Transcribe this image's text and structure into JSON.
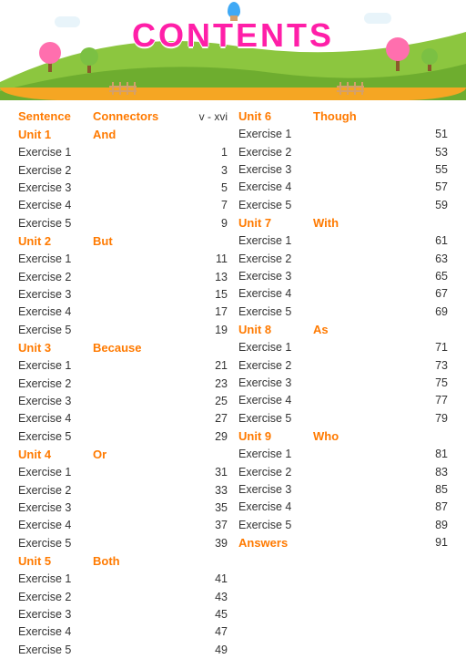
{
  "title": "CONTENTS",
  "colors": {
    "accent": "#ff7a00",
    "title": "#ff1fa8",
    "text": "#333333",
    "grass1": "#8cc63f",
    "grass2": "#6aaa2d",
    "ground": "#f5a623"
  },
  "intro": {
    "label": "Sentence Connectors",
    "pages": "v - xvi"
  },
  "left": [
    {
      "unit": "Unit 1",
      "connector": "And",
      "exercises": [
        {
          "label": "Exercise 1",
          "page": "1"
        },
        {
          "label": "Exercise 2",
          "page": "3"
        },
        {
          "label": "Exercise 3",
          "page": "5"
        },
        {
          "label": "Exercise 4",
          "page": "7"
        },
        {
          "label": "Exercise 5",
          "page": "9"
        }
      ]
    },
    {
      "unit": "Unit 2",
      "connector": "But",
      "exercises": [
        {
          "label": "Exercise 1",
          "page": "11"
        },
        {
          "label": "Exercise 2",
          "page": "13"
        },
        {
          "label": "Exercise 3",
          "page": "15"
        },
        {
          "label": "Exercise 4",
          "page": "17"
        },
        {
          "label": "Exercise 5",
          "page": "19"
        }
      ]
    },
    {
      "unit": "Unit 3",
      "connector": "Because",
      "exercises": [
        {
          "label": "Exercise 1",
          "page": "21"
        },
        {
          "label": "Exercise 2",
          "page": "23"
        },
        {
          "label": "Exercise 3",
          "page": "25"
        },
        {
          "label": "Exercise 4",
          "page": "27"
        },
        {
          "label": "Exercise 5",
          "page": "29"
        }
      ]
    },
    {
      "unit": "Unit 4",
      "connector": "Or",
      "exercises": [
        {
          "label": "Exercise 1",
          "page": "31"
        },
        {
          "label": "Exercise 2",
          "page": "33"
        },
        {
          "label": "Exercise 3",
          "page": "35"
        },
        {
          "label": "Exercise 4",
          "page": "37"
        },
        {
          "label": "Exercise 5",
          "page": "39"
        }
      ]
    },
    {
      "unit": "Unit 5",
      "connector": "Both",
      "exercises": [
        {
          "label": "Exercise 1",
          "page": "41"
        },
        {
          "label": "Exercise 2",
          "page": "43"
        },
        {
          "label": "Exercise 3",
          "page": "45"
        },
        {
          "label": "Exercise 4",
          "page": "47"
        },
        {
          "label": "Exercise 5",
          "page": "49"
        }
      ]
    }
  ],
  "right": [
    {
      "unit": "Unit 6",
      "connector": "Though",
      "exercises": [
        {
          "label": "Exercise 1",
          "page": "51"
        },
        {
          "label": "Exercise 2",
          "page": "53"
        },
        {
          "label": "Exercise 3",
          "page": "55"
        },
        {
          "label": "Exercise 4",
          "page": "57"
        },
        {
          "label": "Exercise 5",
          "page": "59"
        }
      ]
    },
    {
      "unit": "Unit 7",
      "connector": "With",
      "exercises": [
        {
          "label": "Exercise 1",
          "page": "61"
        },
        {
          "label": "Exercise 2",
          "page": "63"
        },
        {
          "label": "Exercise 3",
          "page": "65"
        },
        {
          "label": "Exercise 4",
          "page": "67"
        },
        {
          "label": "Exercise 5",
          "page": "69"
        }
      ]
    },
    {
      "unit": "Unit 8",
      "connector": "As",
      "exercises": [
        {
          "label": "Exercise 1",
          "page": "71"
        },
        {
          "label": "Exercise 2",
          "page": "73"
        },
        {
          "label": "Exercise 3",
          "page": "75"
        },
        {
          "label": "Exercise 4",
          "page": "77"
        },
        {
          "label": "Exercise 5",
          "page": "79"
        }
      ]
    },
    {
      "unit": "Unit 9",
      "connector": "Who",
      "exercises": [
        {
          "label": "Exercise 1",
          "page": "81"
        },
        {
          "label": "Exercise 2",
          "page": "83"
        },
        {
          "label": "Exercise 3",
          "page": "85"
        },
        {
          "label": "Exercise 4",
          "page": "87"
        },
        {
          "label": "Exercise 5",
          "page": "89"
        }
      ]
    }
  ],
  "answers": {
    "label": "Answers",
    "page": "91"
  }
}
